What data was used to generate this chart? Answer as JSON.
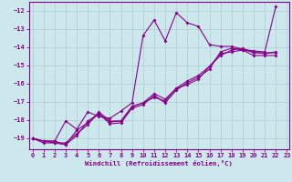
{
  "xlabel": "Windchill (Refroidissement éolien,°C)",
  "xlim": [
    -0.3,
    23.2
  ],
  "ylim": [
    -19.6,
    -11.5
  ],
  "yticks": [
    -19,
    -18,
    -17,
    -16,
    -15,
    -14,
    -13,
    -12
  ],
  "xticks": [
    0,
    1,
    2,
    3,
    4,
    5,
    6,
    7,
    8,
    9,
    10,
    11,
    12,
    13,
    14,
    15,
    16,
    17,
    18,
    19,
    20,
    21,
    22,
    23
  ],
  "bg_color": "#cce8ed",
  "line_color": "#880088",
  "grid_color": "#aacccc",
  "lines": [
    [
      -19.0,
      -19.15,
      -19.15,
      -18.05,
      -18.5,
      -17.55,
      -17.8,
      -17.9,
      -17.5,
      -17.05,
      -13.35,
      -12.5,
      -13.65,
      -12.1,
      -12.65,
      -12.85,
      -13.85,
      -13.95,
      -13.95,
      -14.1,
      -14.2,
      -14.25,
      -11.75
    ],
    [
      -19.0,
      -19.15,
      -19.15,
      -19.35,
      -18.85,
      -18.05,
      -17.65,
      -18.1,
      -18.05,
      -17.25,
      -17.05,
      -16.55,
      -16.85,
      -16.25,
      -15.85,
      -15.55,
      -15.05,
      -14.45,
      -14.15,
      -14.05,
      -14.3,
      -14.3,
      -14.3
    ],
    [
      -19.0,
      -19.15,
      -19.25,
      -19.35,
      -18.55,
      -18.15,
      -17.65,
      -18.2,
      -18.15,
      -17.35,
      -17.15,
      -16.65,
      -17.05,
      -16.35,
      -15.95,
      -15.65,
      -15.2,
      -14.25,
      -14.05,
      -14.15,
      -14.45,
      -14.45,
      -14.45
    ],
    [
      -19.0,
      -19.25,
      -19.25,
      -19.25,
      -18.75,
      -18.25,
      -17.55,
      -18.05,
      -18.05,
      -17.25,
      -17.05,
      -16.75,
      -16.95,
      -16.25,
      -16.05,
      -15.75,
      -15.05,
      -14.35,
      -14.25,
      -14.15,
      -14.25,
      -14.35,
      -14.25
    ]
  ]
}
